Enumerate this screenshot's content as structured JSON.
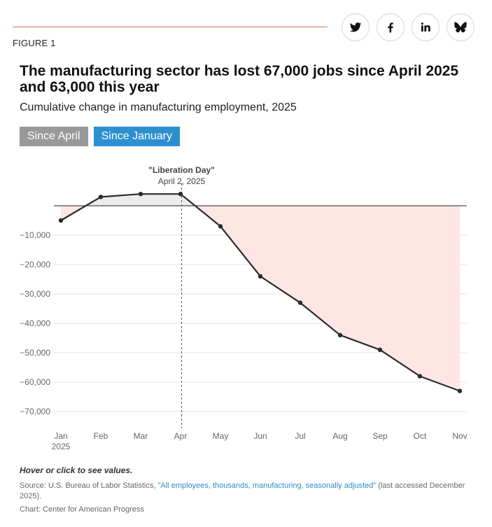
{
  "figure_label": "FIGURE 1",
  "share": [
    {
      "name": "twitter",
      "icon": "twitter-icon"
    },
    {
      "name": "facebook",
      "icon": "facebook-icon"
    },
    {
      "name": "linkedin",
      "icon": "linkedin-icon"
    },
    {
      "name": "bluesky",
      "icon": "bluesky-icon"
    }
  ],
  "title": "The manufacturing sector has lost 67,000 jobs since April 2025 and 63,000 this year",
  "subtitle": "Cumulative change in manufacturing employment, 2025",
  "toggles": [
    {
      "label": "Since April",
      "active": false
    },
    {
      "label": "Since January",
      "active": true
    }
  ],
  "colors": {
    "accent_rule": "#e06a5a",
    "toggle_inactive": "#999999",
    "toggle_active": "#2c8fd0",
    "line": "#2b2b2b",
    "negative_fill": "#fde6e4",
    "positive_fill": "#ececec",
    "link": "#2a8fc5"
  },
  "chart_data": {
    "type": "area",
    "title": "Cumulative change in manufacturing employment, 2025",
    "xlabel": "",
    "ylabel": "",
    "categories": [
      "Jan",
      "Feb",
      "Mar",
      "Apr",
      "May",
      "Jun",
      "Jul",
      "Aug",
      "Sep",
      "Oct",
      "Nov"
    ],
    "category_sublabels": [
      "2025",
      "",
      "",
      "",
      "",
      "",
      "",
      "",
      "",
      "",
      ""
    ],
    "series": [
      {
        "name": "Cumulative change since January",
        "values": [
          -5000,
          3000,
          4000,
          4000,
          -7000,
          -24000,
          -33000,
          -44000,
          -49000,
          -58000,
          -63000
        ]
      }
    ],
    "ylim": [
      -75000,
      7000
    ],
    "yticks": [
      -10000,
      -20000,
      -30000,
      -40000,
      -50000,
      -60000,
      -70000
    ],
    "ytick_labels": [
      "−10,000",
      "−20,000",
      "−30,000",
      "−40,000",
      "−50,000",
      "−60,000",
      "−70,000"
    ],
    "grid": true,
    "baseline": 0,
    "annotation": {
      "category": "Apr",
      "title": "\"Liberation Day\"",
      "subtitle": "April 2, 2025"
    }
  },
  "note": "Hover or click to see values.",
  "source": {
    "prefix": "Source: U.S. Bureau of Labor Statistics, ",
    "link_text": "\"All employees, thousands, manufacturing, seasonally adjusted\"",
    "suffix": " (last accessed December 2025)."
  },
  "credit": "Chart: Center for American Progress"
}
